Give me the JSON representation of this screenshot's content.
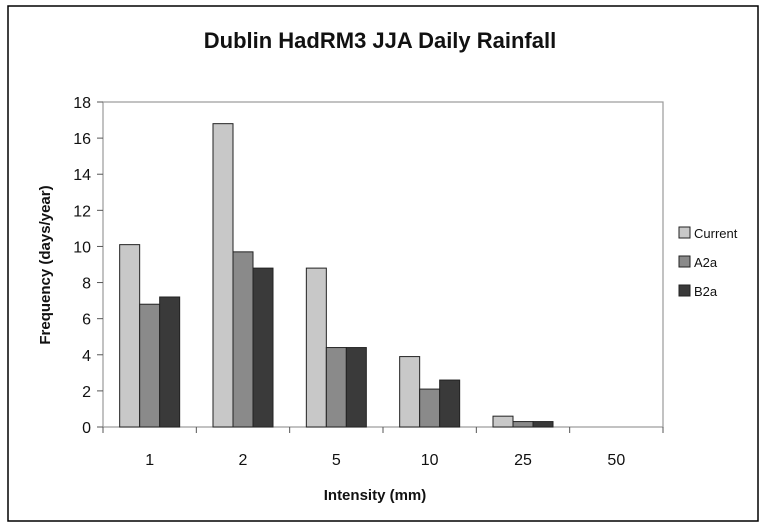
{
  "chart_data": {
    "type": "bar",
    "title": "Dublin HadRM3 JJA Daily Rainfall",
    "xlabel": "Intensity (mm)",
    "ylabel": "Frequency (days/year)",
    "categories": [
      "1",
      "2",
      "5",
      "10",
      "25",
      "50"
    ],
    "ylim": [
      0,
      18
    ],
    "yticks": [
      0,
      2,
      4,
      6,
      8,
      10,
      12,
      14,
      16,
      18
    ],
    "grid": false,
    "legend_position": "right",
    "series": [
      {
        "name": "Current",
        "color": "#c8c8c8",
        "values": [
          10.1,
          16.8,
          8.8,
          3.9,
          0.6,
          0.0
        ]
      },
      {
        "name": "A2a",
        "color": "#8a8a8a",
        "values": [
          6.8,
          9.7,
          4.4,
          2.1,
          0.3,
          0.0
        ]
      },
      {
        "name": "B2a",
        "color": "#3a3a3a",
        "values": [
          7.2,
          8.8,
          4.4,
          2.6,
          0.3,
          0.0
        ]
      }
    ],
    "colors": {
      "background": "#ffffff",
      "plot_border": "#9a9a9a",
      "bar_stroke": "#222222",
      "frame": "#000000"
    }
  }
}
